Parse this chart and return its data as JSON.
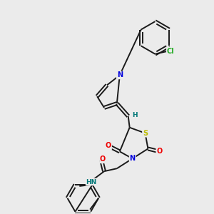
{
  "background_color": "#ebebeb",
  "bond_color": "#1a1a1a",
  "atom_colors": {
    "N": "#0000dd",
    "O": "#ee0000",
    "S": "#bbbb00",
    "Cl": "#22aa22",
    "H": "#007777",
    "C": "#1a1a1a"
  },
  "figsize": [
    3.0,
    3.0
  ],
  "dpi": 100
}
